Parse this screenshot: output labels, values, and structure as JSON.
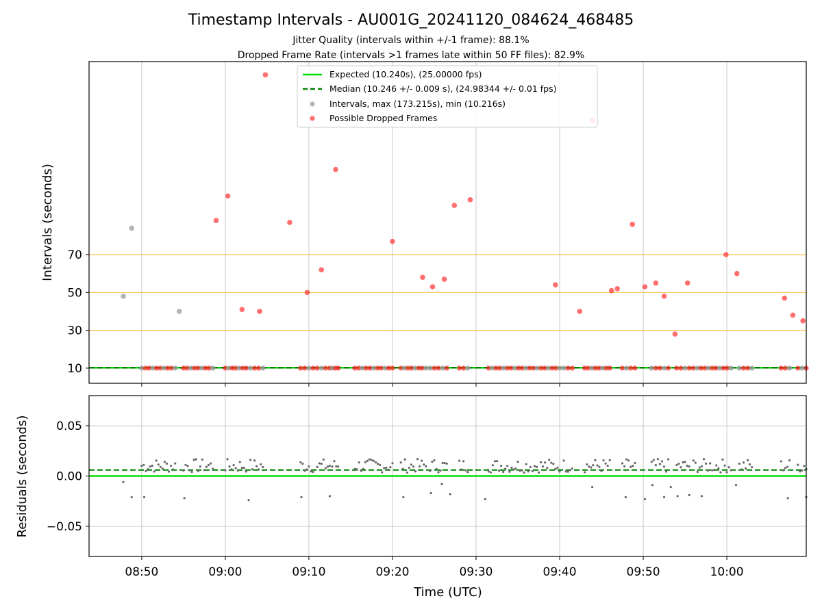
{
  "title": "Timestamp Intervals - AU001G_20241120_084624_468485",
  "subtitle_1": "Jitter Quality (intervals within +/-1 frame): 88.1%",
  "subtitle_2": "Dropped Frame Rate (intervals >1 frames late within 50 FF files): 82.9%",
  "colors": {
    "expected": "#00e000",
    "median": "#008000",
    "interval_point": "#999999",
    "dropped_point": "#ff2020",
    "threshold_line": "#ffc04d",
    "grid": "#c8c8c8",
    "residual_point": "#666666"
  },
  "chart_data": [
    {
      "type": "scatter",
      "ylabel": "Intervals (seconds)",
      "xlabel": "",
      "ylim": [
        2,
        172
      ],
      "y_ticks": [
        "10",
        "30",
        "50",
        "70"
      ],
      "y_tick_values": [
        10,
        30,
        50,
        70
      ],
      "threshold_lines": [
        30,
        50,
        70
      ],
      "grid": "vertical",
      "legend_position": "top-center",
      "legend": [
        {
          "label": "Expected (10.240s), (25.00000 fps)",
          "kind": "solid-line"
        },
        {
          "label": "Median (10.246 +/- 0.009 s), (24.98344 +/- 0.01 fps)",
          "kind": "dashed-line"
        },
        {
          "label": "Intervals, max (173.215s), min (10.216s)",
          "kind": "gray-dot"
        },
        {
          "label": "Possible Dropped Frames",
          "kind": "red-dot"
        }
      ],
      "expected": 10.24,
      "median": 10.246,
      "series": [
        {
          "name": "Intervals, max (173.215s), min (10.216s)",
          "x_minutes": [
            47.8,
            48.8,
            54.5
          ],
          "y": [
            48,
            84,
            40
          ]
        },
        {
          "name": "Possible Dropped Frames",
          "x_minutes": [
            58.9,
            60.3,
            62.0,
            64.1,
            64.8,
            67.7,
            69.8,
            71.5,
            73.2,
            80.0,
            83.6,
            84.8,
            86.2,
            87.4,
            89.3,
            99.5,
            102.4,
            103.9,
            106.2,
            106.9,
            108.7,
            110.2,
            111.5,
            112.5,
            113.8,
            115.3,
            119.9,
            121.2,
            126.9,
            127.9,
            129.1
          ],
          "y": [
            88,
            101,
            41,
            40,
            165,
            87,
            50,
            62,
            115,
            77,
            58,
            53,
            57,
            96,
            99,
            54,
            40,
            141,
            51,
            52,
            86,
            53,
            55,
            48,
            28,
            55,
            70,
            60,
            47,
            38,
            35
          ]
        },
        {
          "name": "baseline intervals (~10 s)",
          "cluster_ranges_minutes": [
            [
              50,
              54
            ],
            [
              55,
              58.5
            ],
            [
              60,
              62.5
            ],
            [
              63,
              64.5
            ],
            [
              69,
              70.5
            ],
            [
              71,
              72.5
            ],
            [
              72.8,
              73.5
            ],
            [
              75.5,
              80
            ],
            [
              81,
              84
            ],
            [
              84.5,
              86.5
            ],
            [
              88,
              89
            ],
            [
              91.5,
              100
            ],
            [
              100.5,
              101.5
            ],
            [
              103,
              106
            ],
            [
              107.5,
              109
            ],
            [
              111,
              113
            ],
            [
              114,
              115.5
            ],
            [
              116,
              120.5
            ],
            [
              121.5,
              123
            ],
            [
              126.5,
              127.5
            ],
            [
              128.5,
              129.5
            ]
          ],
          "y": 10
        }
      ]
    },
    {
      "type": "scatter",
      "ylabel": "Residuals (seconds)",
      "xlabel": "Time (UTC)",
      "ylim": [
        -0.08,
        0.08
      ],
      "y_ticks": [
        "0.05",
        "0.00",
        "−0.05"
      ],
      "y_tick_values": [
        0.05,
        0.0,
        -0.05
      ],
      "grid": "both",
      "x_ticks": [
        "08:50",
        "09:00",
        "09:10",
        "09:20",
        "09:30",
        "09:40",
        "09:50",
        "10:00"
      ],
      "x_tick_minutes": [
        50,
        60,
        70,
        80,
        90,
        100,
        110,
        120
      ],
      "xlim_minutes": [
        43.7,
        129.5
      ],
      "expected_residual": 0.0,
      "median_residual": 0.006,
      "outliers": [
        {
          "x_minutes": 47.8,
          "y": -0.006
        },
        {
          "x_minutes": 48.8,
          "y": -0.021
        },
        {
          "x_minutes": 50.3,
          "y": -0.021
        },
        {
          "x_minutes": 55.1,
          "y": -0.022
        },
        {
          "x_minutes": 62.8,
          "y": -0.024
        },
        {
          "x_minutes": 69.1,
          "y": -0.021
        },
        {
          "x_minutes": 72.5,
          "y": -0.02
        },
        {
          "x_minutes": 81.3,
          "y": -0.021
        },
        {
          "x_minutes": 84.6,
          "y": -0.017
        },
        {
          "x_minutes": 85.9,
          "y": -0.008
        },
        {
          "x_minutes": 86.9,
          "y": -0.018
        },
        {
          "x_minutes": 91.1,
          "y": -0.023
        },
        {
          "x_minutes": 103.9,
          "y": -0.011
        },
        {
          "x_minutes": 107.9,
          "y": -0.021
        },
        {
          "x_minutes": 110.2,
          "y": -0.023
        },
        {
          "x_minutes": 111.1,
          "y": -0.009
        },
        {
          "x_minutes": 112.5,
          "y": -0.021
        },
        {
          "x_minutes": 113.3,
          "y": -0.011
        },
        {
          "x_minutes": 114.1,
          "y": -0.02
        },
        {
          "x_minutes": 115.5,
          "y": -0.019
        },
        {
          "x_minutes": 117.0,
          "y": -0.02
        },
        {
          "x_minutes": 121.1,
          "y": -0.009
        },
        {
          "x_minutes": 127.3,
          "y": -0.022
        },
        {
          "x_minutes": 129.5,
          "y": -0.021
        }
      ],
      "main_residual_range": [
        0.0,
        0.017
      ]
    }
  ]
}
